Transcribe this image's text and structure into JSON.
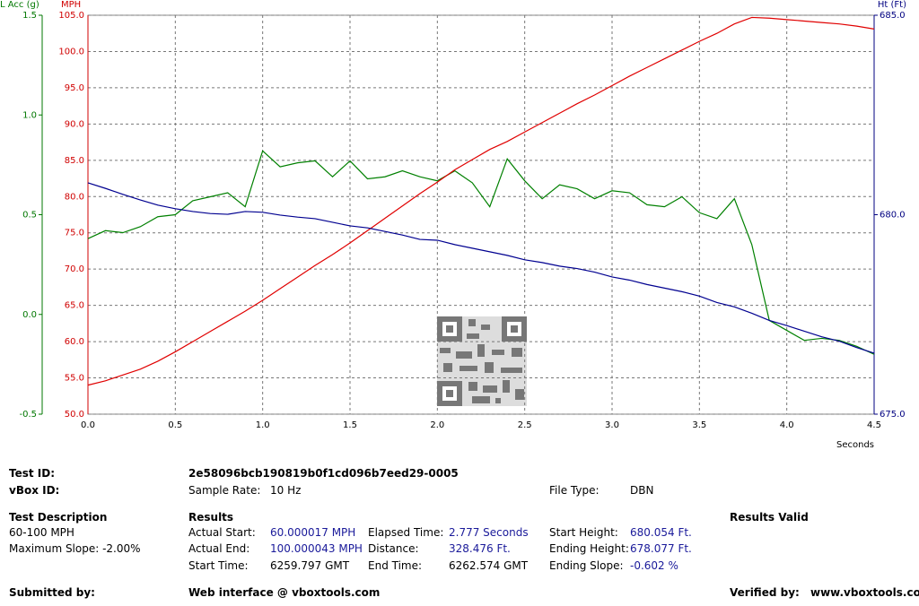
{
  "chart_data": {
    "type": "line",
    "x_label": "Seconds",
    "x": [
      0,
      0.1,
      0.2,
      0.3,
      0.4,
      0.5,
      0.6,
      0.7,
      0.8,
      0.9,
      1,
      1.1,
      1.2,
      1.3,
      1.4,
      1.5,
      1.6,
      1.7,
      1.8,
      1.9,
      2,
      2.1,
      2.2,
      2.3,
      2.4,
      2.5,
      2.6,
      2.7,
      2.8,
      2.9,
      3,
      3.1,
      3.2,
      3.3,
      3.4,
      3.5,
      3.6,
      3.7,
      3.8,
      3.9,
      4,
      4.1,
      4.2,
      4.3,
      4.4,
      4.5
    ],
    "xlim": [
      0,
      4.5
    ],
    "xticks": [
      {
        "value": 0,
        "label": "0.0"
      },
      0.5,
      {
        "value": 1,
        "label": "1.0"
      },
      1.5,
      {
        "value": 2,
        "label": "2.0"
      },
      2.5,
      {
        "value": 3,
        "label": "3.0"
      },
      3.5,
      {
        "value": 4,
        "label": "4.0"
      },
      4.5
    ],
    "ylim": [
      50,
      105
    ],
    "yticks": [
      {
        "value": 50,
        "label": "50.0"
      },
      {
        "value": 55,
        "label": "55.0"
      },
      {
        "value": 60,
        "label": "60.0"
      },
      {
        "value": 65,
        "label": "65.0"
      },
      {
        "value": 70,
        "label": "70.0"
      },
      {
        "value": 75,
        "label": "75.0"
      },
      {
        "value": 80,
        "label": "80.0"
      },
      {
        "value": 85,
        "label": "85.0"
      },
      {
        "value": 90,
        "label": "90.0"
      },
      {
        "value": 95,
        "label": "95.0"
      },
      {
        "value": 100,
        "label": "100.0"
      },
      {
        "value": 105,
        "label": "105.0"
      }
    ],
    "y_label": "MPH",
    "y_color": "#d00000",
    "y2lim": [
      -0.5,
      1.5
    ],
    "y2ticks": [
      -0.5,
      {
        "value": 0,
        "label": "0.0"
      },
      0.5,
      {
        "value": 1,
        "label": "1.0"
      },
      1.5
    ],
    "y2_label": "L Acc (g)",
    "y2_color": "#007700",
    "y3lim": [
      675,
      685
    ],
    "y3ticks": [
      {
        "value": 675,
        "label": "675.0"
      },
      {
        "value": 680,
        "label": "680.0"
      },
      {
        "value": 685,
        "label": "685.0"
      }
    ],
    "y3_label": "Ht (Ft)",
    "y3_color": "#000080",
    "grid": true,
    "series": [
      {
        "name": "L Acc (g)",
        "color": "#008000",
        "axis": "y2",
        "values": [
          0.38,
          0.42,
          0.41,
          0.44,
          0.49,
          0.5,
          0.57,
          0.59,
          0.61,
          0.54,
          0.82,
          0.74,
          0.76,
          0.77,
          0.69,
          0.77,
          0.68,
          0.69,
          0.72,
          0.69,
          0.67,
          0.72,
          0.66,
          0.54,
          0.78,
          0.67,
          0.58,
          0.65,
          0.63,
          0.58,
          0.62,
          0.61,
          0.55,
          0.54,
          0.59,
          0.51,
          0.48,
          0.58,
          0.35,
          -0.03,
          -0.08,
          -0.13,
          -0.12,
          -0.13,
          -0.16,
          -0.2
        ]
      },
      {
        "name": "MPH",
        "color": "#e00000",
        "axis": "y",
        "values": [
          54.0,
          54.6,
          55.4,
          56.2,
          57.3,
          58.6,
          60.0,
          61.4,
          62.8,
          64.2,
          65.7,
          67.3,
          68.9,
          70.5,
          72.0,
          73.6,
          75.3,
          77.0,
          78.7,
          80.4,
          82.0,
          83.7,
          85.1,
          86.5,
          87.6,
          88.9,
          90.2,
          91.5,
          92.8,
          94.0,
          95.3,
          96.6,
          97.8,
          99.0,
          100.2,
          101.4,
          102.5,
          103.8,
          104.7,
          104.6,
          104.4,
          104.2,
          104.0,
          103.8,
          103.5,
          103.1
        ]
      },
      {
        "name": "Ht (Ft)",
        "color": "#000090",
        "axis": "y3",
        "values": [
          680.8,
          680.66,
          680.51,
          680.37,
          680.24,
          680.15,
          680.08,
          680.03,
          680.01,
          680.08,
          680.06,
          679.99,
          679.94,
          679.9,
          679.81,
          679.72,
          679.67,
          679.58,
          679.49,
          679.38,
          679.36,
          679.25,
          679.16,
          679.07,
          678.98,
          678.87,
          678.8,
          678.71,
          678.65,
          678.56,
          678.44,
          678.36,
          678.25,
          678.16,
          678.07,
          677.96,
          677.8,
          677.69,
          677.53,
          677.35,
          677.22,
          677.08,
          676.94,
          676.83,
          676.67,
          676.53
        ]
      }
    ]
  },
  "report": {
    "test_id_label": "Test ID:",
    "test_id": "2e58096bcb190819b0f1cd096b7eed29-0005",
    "vbox_id_label": "vBox ID:",
    "sample_rate_label": "Sample Rate:",
    "sample_rate": "10 Hz",
    "file_type_label": "File Type:",
    "file_type": "DBN",
    "test_description_heading": "Test Description",
    "results_heading": "Results",
    "results_valid": "Results Valid",
    "test_description": "60-100 MPH",
    "maximum_slope": "Maximum Slope:  -2.00%",
    "actual_start_label": "Actual Start:",
    "actual_start": "60.000017 MPH",
    "elapsed_time_label": "Elapsed Time:",
    "elapsed_time": "2.777 Seconds",
    "start_height_label": "Start Height:",
    "start_height": "680.054 Ft.",
    "actual_end_label": "Actual End:",
    "actual_end": "100.000043 MPH",
    "distance_label": "Distance:",
    "distance": "328.476 Ft.",
    "ending_height_label": "Ending Height:",
    "ending_height": "678.077 Ft.",
    "start_time_label": "Start Time:",
    "start_time": "6259.797 GMT",
    "end_time_label": "End Time:",
    "end_time": "6262.574 GMT",
    "ending_slope_label": "Ending Slope:",
    "ending_slope": "-0.602 %",
    "submitted_by_label": "Submitted by:",
    "web_interface": "Web interface @ vboxtools.com",
    "verified_by_label": "Verified by:",
    "website": "www.vboxtools.com"
  }
}
